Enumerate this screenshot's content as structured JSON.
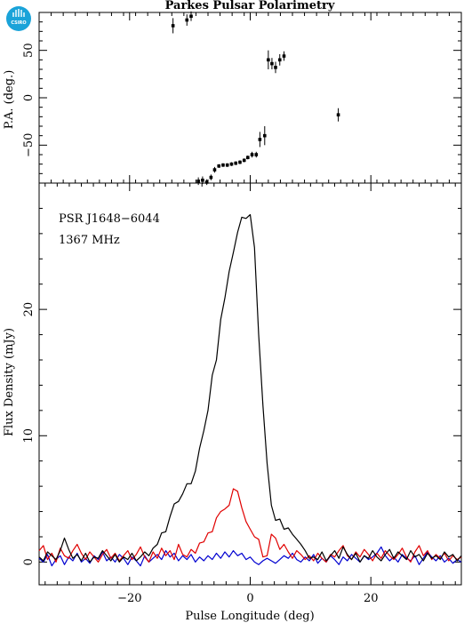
{
  "chart_data": {
    "type": "line",
    "title": "Parkes Pulsar Polarimetry",
    "logo_text": "CSIRO",
    "colors": {
      "stokes_i": "#000000",
      "linear": "#e00000",
      "circular": "#0000d0",
      "logo": "#1aa3d9"
    },
    "annotations": [
      "PSR J1648−6044",
      "1367 MHz"
    ],
    "pa_panel": {
      "ylabel": "P.A. (deg.)",
      "xlim": [
        -35,
        35
      ],
      "ylim": [
        -90,
        90
      ],
      "yticks": [
        -50,
        0,
        50
      ],
      "ytick_labels": [
        "−50",
        "0",
        "50"
      ],
      "points": [
        {
          "x": -12.8,
          "y": 76,
          "err": 8
        },
        {
          "x": -10.5,
          "y": 82,
          "err": 6
        },
        {
          "x": -9.8,
          "y": 86,
          "err": 5
        },
        {
          "x": -8.6,
          "y": -88,
          "err": 4
        },
        {
          "x": -7.9,
          "y": -87,
          "err": 4
        },
        {
          "x": -7.2,
          "y": -89,
          "err": 3
        },
        {
          "x": -6.5,
          "y": -84,
          "err": 3
        },
        {
          "x": -5.9,
          "y": -76,
          "err": 3
        },
        {
          "x": -5.2,
          "y": -72,
          "err": 2
        },
        {
          "x": -4.5,
          "y": -71,
          "err": 2
        },
        {
          "x": -3.8,
          "y": -71,
          "err": 2
        },
        {
          "x": -3.1,
          "y": -70,
          "err": 2
        },
        {
          "x": -2.4,
          "y": -69,
          "err": 2
        },
        {
          "x": -1.7,
          "y": -68,
          "err": 2
        },
        {
          "x": -1.0,
          "y": -66,
          "err": 2
        },
        {
          "x": -0.4,
          "y": -63,
          "err": 2
        },
        {
          "x": 0.3,
          "y": -60,
          "err": 3
        },
        {
          "x": 1.0,
          "y": -60,
          "err": 3
        },
        {
          "x": 1.6,
          "y": -44,
          "err": 8
        },
        {
          "x": 2.4,
          "y": -40,
          "err": 10
        },
        {
          "x": 3.0,
          "y": 40,
          "err": 10
        },
        {
          "x": 3.6,
          "y": 36,
          "err": 6
        },
        {
          "x": 4.2,
          "y": 32,
          "err": 6
        },
        {
          "x": 4.9,
          "y": 40,
          "err": 6
        },
        {
          "x": 5.6,
          "y": 44,
          "err": 5
        },
        {
          "x": 14.6,
          "y": -18,
          "err": 7
        }
      ]
    },
    "profile_panel": {
      "xlabel": "Pulse Longitude (deg)",
      "ylabel": "Flux Density (mJy)",
      "xlim": [
        -35,
        35
      ],
      "ylim": [
        -1.8,
        30
      ],
      "xticks": [
        -20,
        0,
        20
      ],
      "xtick_labels": [
        "−20",
        "0",
        "20"
      ],
      "yticks": [
        0,
        10,
        20
      ],
      "ytick_labels": [
        "0",
        "10",
        "20"
      ],
      "x": [
        -35,
        -34.3,
        -33.6,
        -32.9,
        -32.2,
        -31.5,
        -30.8,
        -30.1,
        -29.4,
        -28.7,
        -28,
        -27.3,
        -26.6,
        -25.9,
        -25.2,
        -24.5,
        -23.8,
        -23.1,
        -22.4,
        -21.7,
        -21,
        -20.3,
        -19.6,
        -18.9,
        -18.2,
        -17.5,
        -16.8,
        -16.1,
        -15.4,
        -14.7,
        -14,
        -13.3,
        -12.6,
        -11.9,
        -11.2,
        -10.5,
        -9.8,
        -9.1,
        -8.4,
        -7.7,
        -7,
        -6.3,
        -5.6,
        -4.9,
        -4.2,
        -3.5,
        -2.8,
        -2.1,
        -1.4,
        -0.7,
        0,
        0.7,
        1.4,
        2.1,
        2.8,
        3.5,
        4.2,
        4.9,
        5.6,
        6.3,
        7,
        7.7,
        8.4,
        9.1,
        9.8,
        10.5,
        11.2,
        11.9,
        12.6,
        13.3,
        14,
        14.7,
        15.4,
        16.1,
        16.8,
        17.5,
        18.2,
        18.9,
        19.6,
        20.3,
        21,
        21.7,
        22.4,
        23.1,
        23.8,
        24.5,
        25.2,
        25.9,
        26.6,
        27.3,
        28,
        28.7,
        29.4,
        30.1,
        30.8,
        31.5,
        32.2,
        32.9,
        33.6,
        34.3,
        35
      ],
      "series": [
        {
          "key": "stokes_i",
          "values": [
            0.4,
            0.1,
            0.8,
            0.5,
            0.2,
            0.9,
            1.9,
            1.0,
            0.3,
            0.6,
            0.1,
            0.7,
            0.0,
            0.4,
            0.3,
            0.9,
            0.5,
            0.1,
            0.6,
            0.0,
            0.4,
            0.2,
            0.7,
            0.1,
            0.4,
            0.8,
            0.5,
            1.1,
            1.4,
            2.3,
            2.4,
            3.6,
            4.6,
            4.8,
            5.4,
            6.2,
            6.2,
            7.2,
            9.0,
            10.4,
            12.0,
            14.8,
            16.0,
            19.2,
            20.9,
            23.0,
            24.5,
            26.1,
            27.3,
            27.2,
            27.5,
            24.9,
            18.0,
            12.4,
            7.8,
            4.5,
            3.3,
            3.4,
            2.6,
            2.7,
            2.2,
            1.8,
            1.4,
            0.9,
            0.3,
            0.4,
            0.2,
            0.8,
            0.1,
            0.5,
            0.9,
            0.3,
            1.2,
            0.6,
            0.2,
            0.7,
            0.0,
            0.5,
            0.3,
            0.9,
            0.4,
            0.1,
            0.6,
            1.0,
            0.3,
            0.8,
            0.5,
            0.2,
            0.9,
            0.4,
            0.6,
            0.1,
            0.7,
            0.3,
            0.5,
            0.2,
            0.8,
            0.4,
            0.6,
            0.1,
            0.5
          ]
        },
        {
          "key": "linear",
          "values": [
            0.9,
            1.3,
            0.2,
            0.7,
            0.0,
            1.1,
            0.5,
            0.3,
            0.9,
            1.4,
            0.7,
            0.2,
            0.8,
            0.4,
            0.0,
            0.6,
            1.0,
            0.3,
            0.7,
            0.1,
            0.5,
            0.9,
            0.2,
            0.6,
            1.2,
            0.4,
            0.0,
            0.8,
            0.3,
            1.1,
            0.5,
            0.9,
            0.2,
            1.4,
            0.6,
            0.4,
            1.0,
            0.7,
            1.5,
            1.6,
            2.3,
            2.4,
            3.5,
            4.0,
            4.2,
            4.5,
            5.8,
            5.6,
            4.3,
            3.2,
            2.6,
            2.0,
            1.8,
            0.4,
            0.5,
            2.2,
            1.9,
            1.0,
            1.4,
            0.8,
            0.3,
            0.9,
            0.6,
            0.2,
            0.5,
            0.1,
            0.7,
            0.3,
            0.0,
            0.6,
            0.4,
            0.9,
            1.3,
            0.5,
            0.2,
            0.8,
            0.4,
            1.0,
            0.6,
            0.1,
            0.7,
            0.3,
            0.9,
            0.5,
            0.2,
            0.6,
            1.1,
            0.4,
            0.0,
            0.8,
            1.3,
            0.5,
            0.9,
            0.2,
            0.6,
            0.3,
            0.7,
            0.1,
            0.5,
            0.2,
            0.4
          ]
        },
        {
          "key": "circular",
          "values": [
            0.3,
            0.0,
            0.6,
            -0.3,
            0.2,
            0.5,
            -0.2,
            0.4,
            0.1,
            0.7,
            0.0,
            0.3,
            -0.1,
            0.5,
            0.2,
            0.8,
            0.1,
            0.4,
            0.0,
            0.6,
            0.3,
            -0.2,
            0.4,
            0.1,
            -0.3,
            0.5,
            0.0,
            0.3,
            0.6,
            0.2,
            0.9,
            0.4,
            0.7,
            0.1,
            0.5,
            0.2,
            0.6,
            0.0,
            0.4,
            0.1,
            0.5,
            0.2,
            0.7,
            0.3,
            0.8,
            0.4,
            0.9,
            0.5,
            0.7,
            0.2,
            0.4,
            0.0,
            -0.2,
            0.1,
            0.3,
            0.1,
            -0.1,
            0.2,
            0.5,
            0.3,
            0.7,
            0.2,
            0.0,
            0.4,
            0.1,
            0.6,
            -0.1,
            0.3,
            0.0,
            0.5,
            0.2,
            -0.2,
            0.4,
            0.1,
            0.6,
            0.3,
            0.0,
            0.5,
            0.2,
            0.4,
            0.7,
            1.2,
            0.5,
            0.1,
            0.4,
            0.0,
            0.6,
            0.3,
            0.1,
            0.5,
            -0.2,
            0.3,
            0.8,
            0.4,
            0.1,
            0.5,
            0.0,
            0.3,
            -0.1,
            0.2,
            0.0
          ]
        }
      ]
    }
  }
}
